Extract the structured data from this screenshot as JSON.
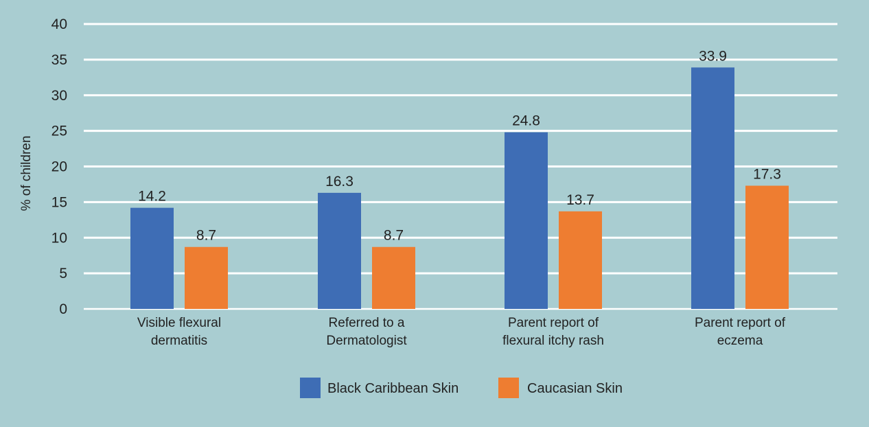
{
  "chart_data": {
    "type": "bar",
    "ylabel": "% of children",
    "xlabel": "",
    "ylim": [
      0,
      40
    ],
    "yticks": [
      0,
      5,
      10,
      15,
      20,
      25,
      30,
      35,
      40
    ],
    "grid": true,
    "legend_position": "bottom",
    "categories": [
      [
        "Visible flexural",
        "dermatitis"
      ],
      [
        "Referred to a",
        "Dermatologist"
      ],
      [
        "Parent report of",
        "flexural itchy rash"
      ],
      [
        "Parent report of",
        "eczema"
      ]
    ],
    "series": [
      {
        "name": "Black Caribbean Skin",
        "color": "#3e6db5",
        "values": [
          14.2,
          16.3,
          24.8,
          33.9
        ]
      },
      {
        "name": "Caucasian Skin",
        "color": "#ee7d31",
        "values": [
          8.7,
          8.7,
          13.7,
          17.3
        ]
      }
    ],
    "colors": {
      "background": "#a9cdd1",
      "gridline": "#ffffff",
      "text": "#222222"
    }
  }
}
